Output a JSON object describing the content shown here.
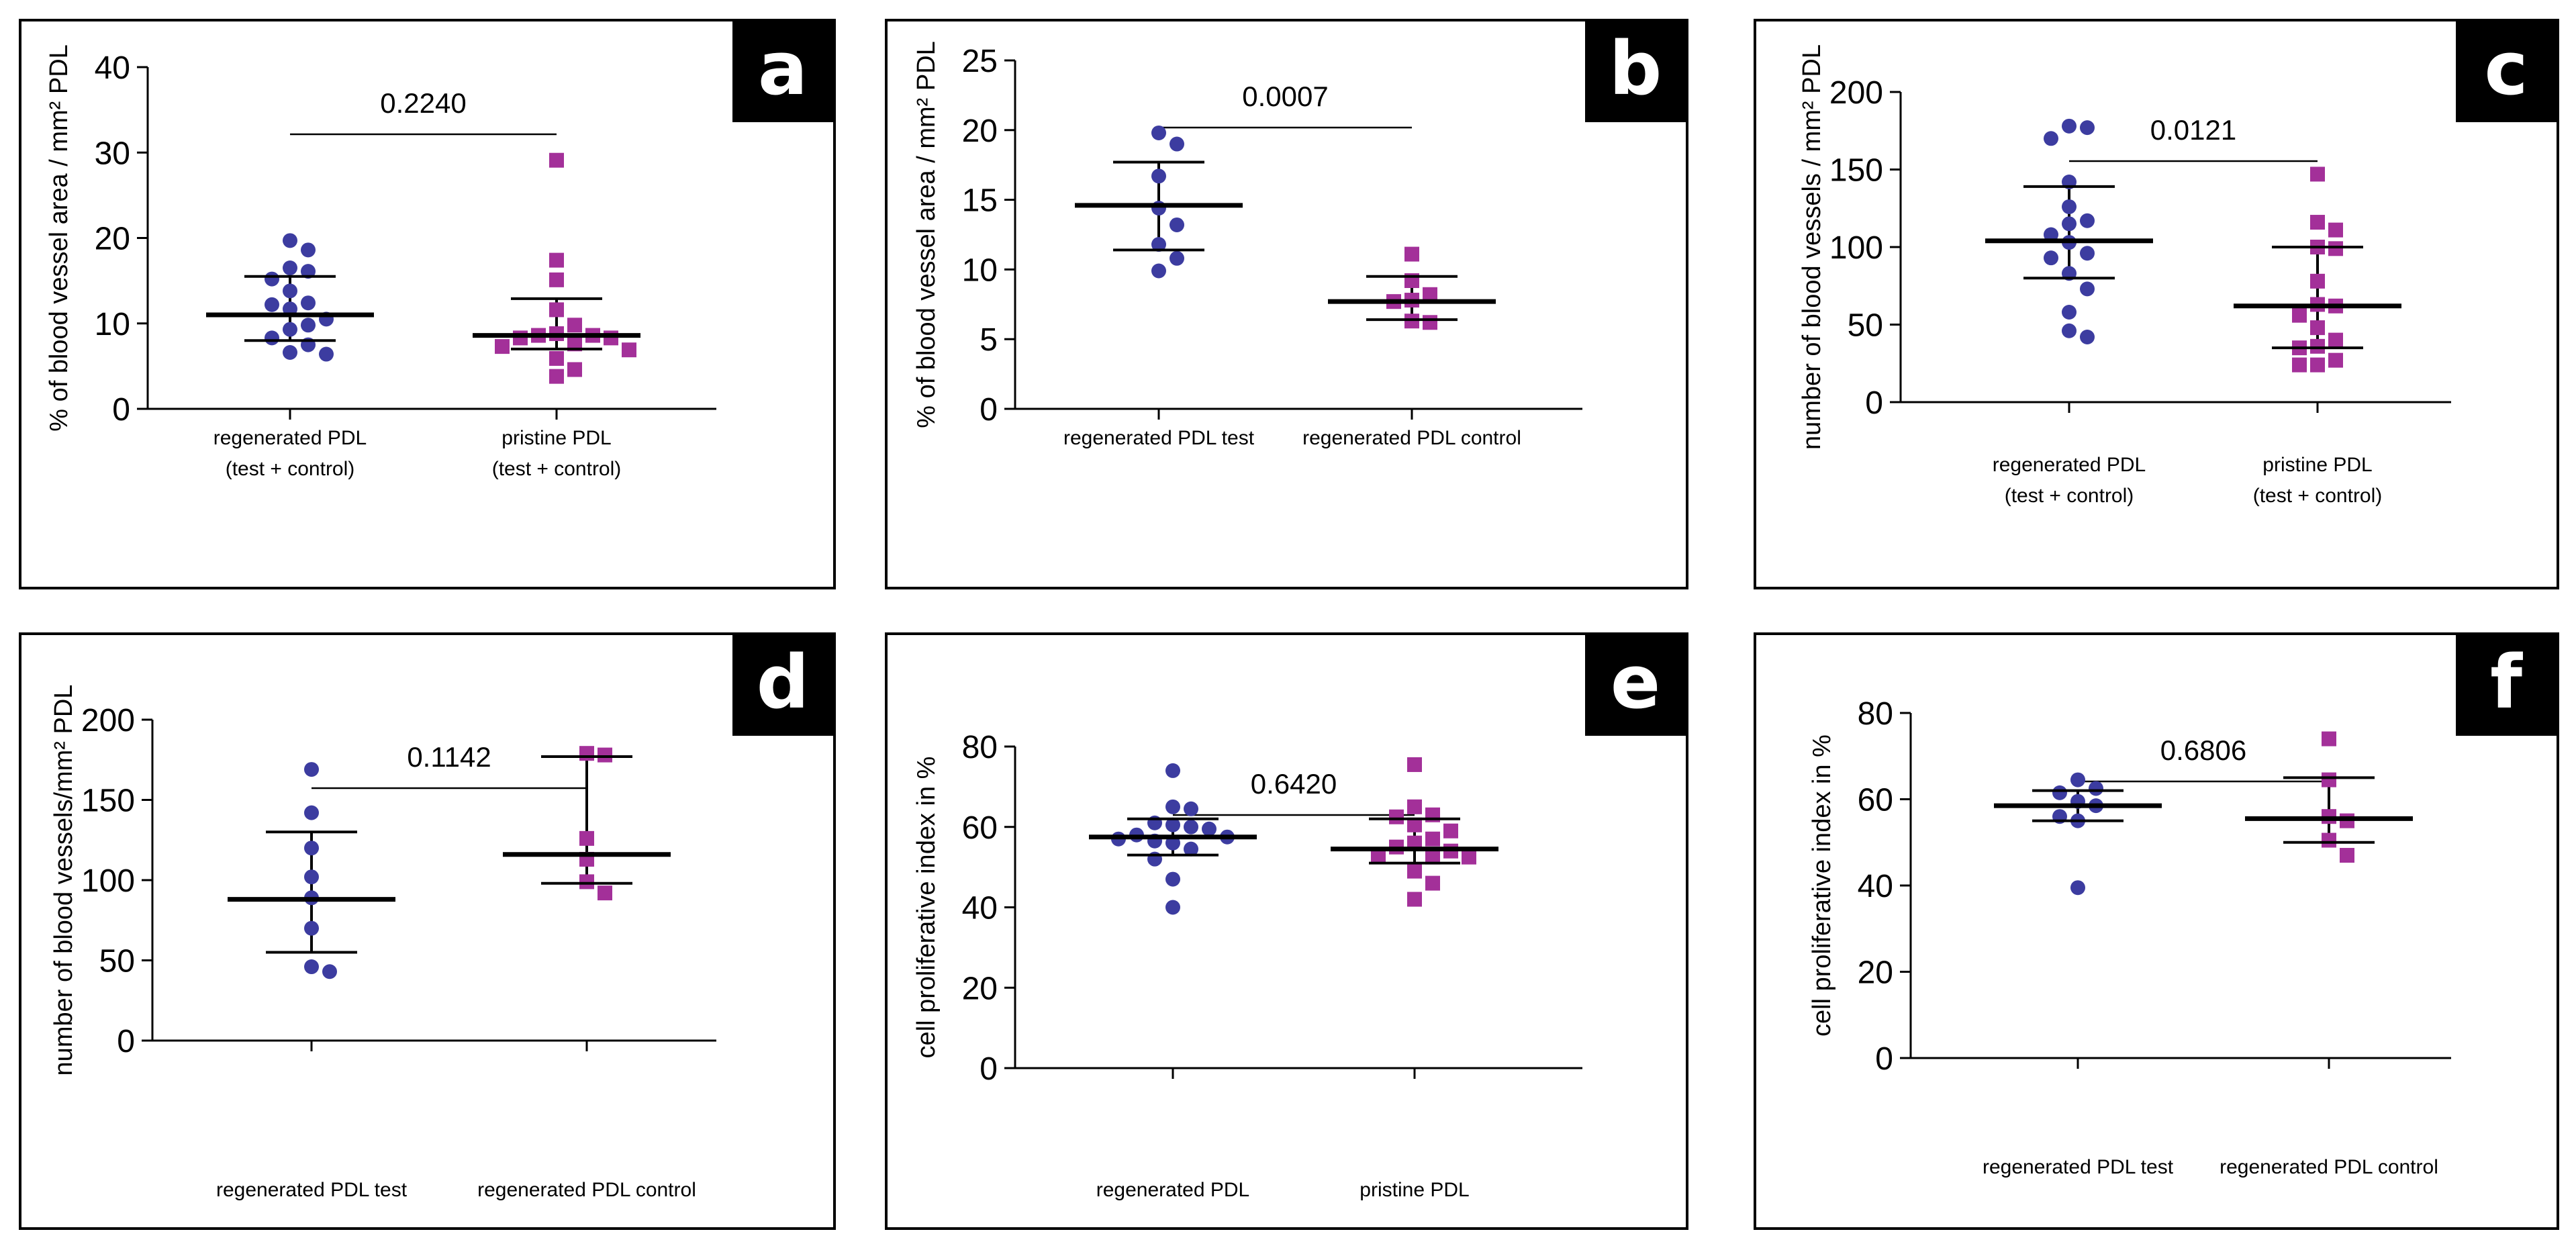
{
  "colors": {
    "series1": "#3C3CA0",
    "series2": "#A33099",
    "axis": "#000000",
    "text": "#000000"
  },
  "chart_data": [
    {
      "panel": "a",
      "type": "scatter",
      "ylabel": "% of blood vessel area / mm² PDL",
      "ylim": [
        0,
        40
      ],
      "yticks": [
        0,
        10,
        20,
        30,
        40
      ],
      "pvalue": "0.2240",
      "groups": [
        {
          "label1": "regenerated PDL",
          "label2": "(test + control)",
          "marker": "circle",
          "mean": 11,
          "upper": 15.5,
          "lower": 8,
          "points": [
            19.7,
            18.6,
            16.5,
            16.1,
            15.2,
            13.8,
            12.4,
            12.2,
            11.7,
            10.5,
            9.8,
            9.3,
            8.3,
            7.5,
            6.6,
            6.4
          ]
        },
        {
          "label1": "pristine PDL",
          "label2": "(test + control)",
          "marker": "square",
          "mean": 8.6,
          "upper": 12.9,
          "lower": 7,
          "points": [
            29.1,
            17.4,
            15.1,
            11.6,
            9.8,
            8.8,
            8.6,
            8.6,
            8.3,
            8.3,
            7.6,
            7.3,
            6.9,
            5.9,
            4.6,
            3.8
          ]
        }
      ]
    },
    {
      "panel": "b",
      "type": "scatter",
      "ylabel": "% of blood vessel area / mm² PDL",
      "ylim": [
        0,
        25
      ],
      "yticks": [
        0,
        5,
        10,
        15,
        20,
        25
      ],
      "pvalue": "0.0007",
      "groups": [
        {
          "label1": "regenerated PDL test",
          "label2": "",
          "marker": "circle",
          "mean": 14.6,
          "upper": 17.7,
          "lower": 11.4,
          "points": [
            19.8,
            19,
            16.7,
            14.4,
            13.2,
            11.8,
            10.8,
            9.9
          ]
        },
        {
          "label1": "regenerated PDL control",
          "label2": "",
          "marker": "square",
          "mean": 7.7,
          "upper": 9.5,
          "lower": 6.4,
          "points": [
            11.1,
            9.2,
            8.2,
            7.8,
            7.7,
            6.3,
            6.2
          ]
        }
      ]
    },
    {
      "panel": "c",
      "type": "scatter",
      "ylabel": "number of blood vessels / mm² PDL",
      "ylim": [
        0,
        200
      ],
      "yticks": [
        0,
        50,
        100,
        150,
        200
      ],
      "pvalue": "0.0121",
      "groups": [
        {
          "label1": "regenerated PDL",
          "label2": "(test + control)",
          "marker": "circle",
          "mean": 104,
          "upper": 139,
          "lower": 80,
          "points": [
            178,
            177,
            170,
            142,
            126,
            117,
            115,
            108,
            103,
            96,
            93,
            83,
            73,
            58,
            46,
            42
          ]
        },
        {
          "label1": "pristine PDL",
          "label2": "(test + control)",
          "marker": "square",
          "mean": 62,
          "upper": 100,
          "lower": 35,
          "points": [
            147,
            116,
            111,
            100,
            99,
            78,
            63,
            62,
            56,
            48,
            40,
            36,
            35,
            27,
            24,
            24
          ]
        }
      ]
    },
    {
      "panel": "d",
      "type": "scatter",
      "ylabel": "number of blood vessels/mm² PDL",
      "ylim": [
        0,
        200
      ],
      "yticks": [
        0,
        50,
        100,
        150,
        200
      ],
      "pvalue": "0.1142",
      "groups": [
        {
          "label1": "regenerated PDL test",
          "label2": "",
          "marker": "circle",
          "mean": 88,
          "upper": 130,
          "lower": 55,
          "points": [
            169,
            142,
            120,
            102,
            89,
            70,
            46,
            43
          ]
        },
        {
          "label1": "regenerated PDL control",
          "label2": "",
          "marker": "square",
          "mean": 116,
          "upper": 177,
          "lower": 98,
          "points": [
            179,
            178,
            126,
            113,
            99,
            92
          ]
        }
      ]
    },
    {
      "panel": "e",
      "type": "scatter",
      "ylabel": "cell proliferative index in %",
      "ylim": [
        0,
        80
      ],
      "yticks": [
        0,
        20,
        40,
        60,
        80
      ],
      "pvalue": "0.6420",
      "groups": [
        {
          "label1": "regenerated PDL",
          "label2": "",
          "marker": "circle",
          "mean": 57.5,
          "upper": 62,
          "lower": 53,
          "points": [
            74,
            65,
            64.5,
            61,
            60.5,
            60,
            59.5,
            58,
            57.5,
            57,
            56.5,
            56,
            54.5,
            52,
            47,
            40
          ]
        },
        {
          "label1": "pristine PDL",
          "label2": "",
          "marker": "square",
          "mean": 54.5,
          "upper": 62,
          "lower": 51,
          "points": [
            75.5,
            65,
            63,
            62.5,
            60.5,
            59,
            57,
            56,
            55,
            54,
            53,
            52.5,
            52.5,
            49,
            46,
            42
          ]
        }
      ]
    },
    {
      "panel": "f",
      "type": "scatter",
      "ylabel": "cell proliferative index in %",
      "ylim": [
        0,
        80
      ],
      "yticks": [
        0,
        20,
        40,
        60,
        80
      ],
      "pvalue": "0.6806",
      "groups": [
        {
          "label1": "regenerated PDL test",
          "label2": "",
          "marker": "circle",
          "mean": 58.5,
          "upper": 62,
          "lower": 55,
          "points": [
            64.5,
            62.5,
            61.5,
            59.5,
            58.5,
            56,
            55,
            39.5
          ]
        },
        {
          "label1": "regenerated PDL control",
          "label2": "",
          "marker": "square",
          "mean": 55.5,
          "upper": 65,
          "lower": 50,
          "points": [
            74,
            64.5,
            56,
            55,
            50.5,
            47
          ]
        }
      ]
    }
  ]
}
